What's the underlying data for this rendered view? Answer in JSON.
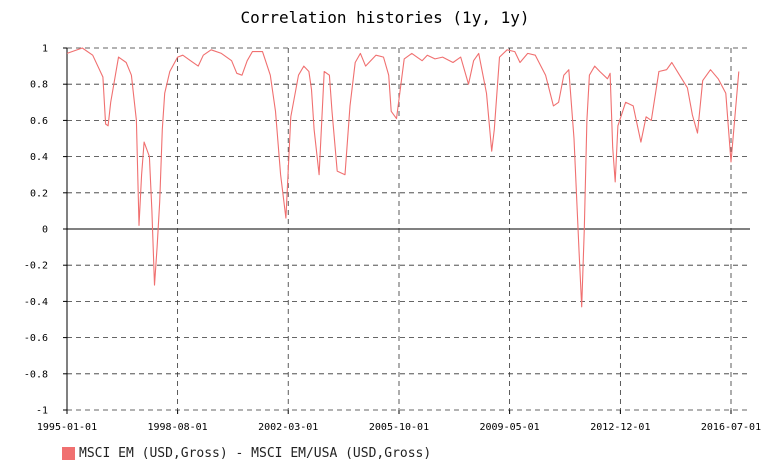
{
  "chart_data": {
    "type": "line",
    "title": "Correlation histories (1y, 1y)",
    "xlabel": "",
    "ylabel": "",
    "ylim": [
      -1,
      1
    ],
    "yticks": [
      "1",
      "0.8",
      "0.6",
      "0.4",
      "0.2",
      "0",
      "-0.2",
      "-0.4",
      "-0.6",
      "-0.8",
      "-1"
    ],
    "xticks": [
      "1995-01-01",
      "1998-08-01",
      "2002-03-01",
      "2005-10-01",
      "2009-05-01",
      "2012-12-01",
      "2016-07-01"
    ],
    "grid": true,
    "legend_position": "bottom-left",
    "colors": {
      "series": "#f07070",
      "grid": "#333333",
      "axis": "#000000"
    },
    "series": [
      {
        "name": "MSCI EM (USD,Gross) - MSCI EM/USA (USD,Gross)",
        "color": "#f07070",
        "x": [
          "1995-01-01",
          "1995-07-01",
          "1995-11-01",
          "1996-03-01",
          "1996-04-01",
          "1996-05-01",
          "1996-06-01",
          "1996-09-01",
          "1996-12-01",
          "1997-02-01",
          "1997-04-01",
          "1997-05-01",
          "1997-06-01",
          "1997-07-01",
          "1997-09-01",
          "1997-10-01",
          "1997-11-01",
          "1997-12-01",
          "1998-01-01",
          "1998-02-01",
          "1998-03-01",
          "1998-05-01",
          "1998-08-01",
          "1998-10-01",
          "1999-01-01",
          "1999-04-01",
          "1999-06-01",
          "1999-09-01",
          "2000-01-01",
          "2000-05-01",
          "2000-07-01",
          "2000-09-01",
          "2000-11-01",
          "2001-01-01",
          "2001-05-01",
          "2001-08-01",
          "2001-10-01",
          "2001-12-01",
          "2002-02-01",
          "2002-04-01",
          "2002-07-01",
          "2002-09-01",
          "2002-11-01",
          "2002-12-01",
          "2003-01-01",
          "2003-03-01",
          "2003-05-01",
          "2003-07-01",
          "2003-08-01",
          "2003-10-01",
          "2004-01-01",
          "2004-03-01",
          "2004-05-01",
          "2004-07-01",
          "2004-09-01",
          "2005-01-01",
          "2005-04-01",
          "2005-06-01",
          "2005-07-01",
          "2005-09-01",
          "2005-12-01",
          "2006-03-01",
          "2006-05-01",
          "2006-07-01",
          "2006-09-01",
          "2006-12-01",
          "2007-03-01",
          "2007-07-01",
          "2007-10-01",
          "2008-01-01",
          "2008-03-01",
          "2008-05-01",
          "2008-08-01",
          "2008-10-01",
          "2008-11-01",
          "2009-01-01",
          "2009-04-01",
          "2009-07-01",
          "2009-09-01",
          "2009-12-01",
          "2010-03-01",
          "2010-07-01",
          "2010-10-01",
          "2010-12-01",
          "2011-02-01",
          "2011-04-01",
          "2011-06-01",
          "2011-08-01",
          "2011-09-01",
          "2011-10-01",
          "2011-11-01",
          "2011-12-01",
          "2012-02-01",
          "2012-04-01",
          "2012-07-01",
          "2012-08-01",
          "2012-09-01",
          "2012-10-01",
          "2012-11-01",
          "2013-02-01",
          "2013-05-01",
          "2013-08-01",
          "2013-10-01",
          "2013-12-01",
          "2014-03-01",
          "2014-06-01",
          "2014-08-01",
          "2014-11-01",
          "2015-02-01",
          "2015-04-01",
          "2015-06-01",
          "2015-08-01",
          "2015-11-01",
          "2016-02-01",
          "2016-05-01",
          "2016-07-01",
          "2016-10-01"
        ],
        "values": [
          0.97,
          1.0,
          0.96,
          0.84,
          0.58,
          0.57,
          0.7,
          0.95,
          0.92,
          0.85,
          0.6,
          0.02,
          0.3,
          0.48,
          0.4,
          0.1,
          -0.31,
          -0.1,
          0.15,
          0.55,
          0.75,
          0.87,
          0.95,
          0.96,
          0.93,
          0.9,
          0.96,
          0.99,
          0.97,
          0.93,
          0.86,
          0.85,
          0.93,
          0.98,
          0.98,
          0.85,
          0.65,
          0.3,
          0.06,
          0.62,
          0.85,
          0.9,
          0.87,
          0.77,
          0.55,
          0.3,
          0.87,
          0.85,
          0.65,
          0.32,
          0.3,
          0.68,
          0.92,
          0.97,
          0.9,
          0.96,
          0.95,
          0.85,
          0.65,
          0.61,
          0.94,
          0.97,
          0.95,
          0.93,
          0.96,
          0.94,
          0.95,
          0.92,
          0.95,
          0.8,
          0.93,
          0.97,
          0.75,
          0.43,
          0.55,
          0.95,
          0.99,
          0.98,
          0.92,
          0.97,
          0.96,
          0.85,
          0.68,
          0.7,
          0.85,
          0.88,
          0.5,
          -0.13,
          -0.43,
          0.0,
          0.6,
          0.85,
          0.9,
          0.87,
          0.83,
          0.86,
          0.45,
          0.26,
          0.57,
          0.7,
          0.68,
          0.48,
          0.62,
          0.6,
          0.87,
          0.88,
          0.92,
          0.85,
          0.78,
          0.63,
          0.53,
          0.82,
          0.88,
          0.83,
          0.75,
          0.37,
          0.87
        ]
      }
    ]
  }
}
